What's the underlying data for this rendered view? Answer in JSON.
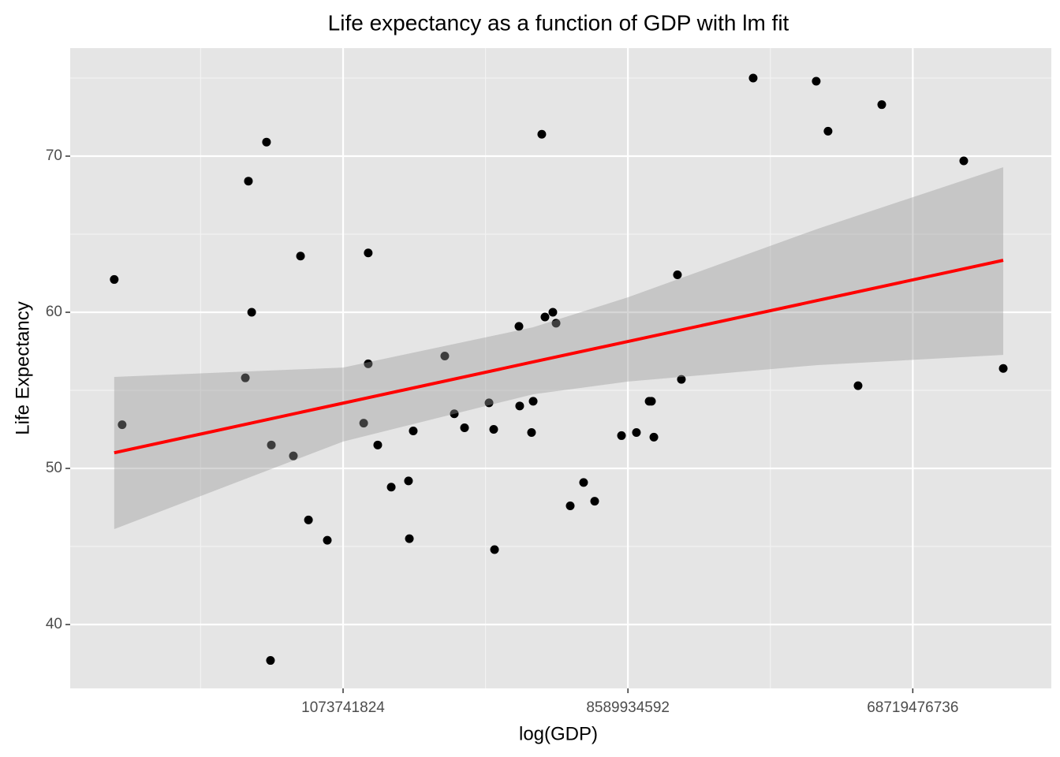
{
  "chart_data": {
    "type": "scatter",
    "title": "Life expectancy as a function of GDP with lm fit",
    "x_label": "log(GDP)",
    "y_label": "Life Expectancy",
    "x_scale": "log",
    "grid": true,
    "color": "#000000",
    "xlim": [
      146470000,
      188930000000
    ],
    "ylim": [
      35.91,
      76.92
    ],
    "xticks": [
      1073741824,
      8589934592,
      68719476736
    ],
    "yticks": [
      40,
      50,
      60,
      70
    ],
    "x": [
      202000000,
      214000000,
      526000000,
      538000000,
      551000000,
      614000000,
      636000000,
      632000000,
      747000000,
      787000000,
      834000000,
      957000000,
      1248000000,
      1290000000,
      1290000000,
      1383000000,
      1526000000,
      1731000000,
      1742000000,
      1792000000,
      2256000000,
      2418000000,
      2606000000,
      3116000000,
      3224000000,
      3244000000,
      3877000000,
      3898000000,
      4250000000,
      4301000000,
      4580000000,
      4688000000,
      4965000000,
      5083000000,
      5637000000,
      6215000000,
      6738000000,
      8196000000,
      9140000000,
      10030000000,
      10200000000,
      10380000000,
      12330000000,
      12690000000,
      21430000000,
      33960000000,
      37020000000,
      46090000000,
      54790000000,
      99700000000,
      133000000000
    ],
    "values": [
      62.1,
      52.8,
      55.8,
      68.4,
      60.0,
      70.9,
      51.5,
      37.7,
      50.8,
      63.6,
      46.7,
      45.4,
      52.9,
      63.8,
      56.7,
      51.5,
      48.8,
      49.2,
      45.5,
      52.4,
      57.2,
      53.5,
      52.6,
      54.2,
      52.5,
      44.8,
      59.1,
      54.0,
      52.3,
      54.3,
      71.4,
      59.7,
      60.0,
      59.3,
      47.6,
      49.1,
      47.9,
      52.1,
      52.3,
      54.3,
      54.3,
      52.0,
      62.4,
      55.7,
      75.0,
      74.8,
      71.6,
      55.3,
      73.3,
      69.7,
      56.4
    ],
    "fit": {
      "color": "#ff0000",
      "band_color": "#999999",
      "x": [
        202000000,
        1073741824,
        4301000000,
        8589934592,
        34359738368,
        133000000000
      ],
      "values": [
        51.0,
        54.18,
        56.82,
        58.13,
        60.76,
        63.33
      ],
      "lower": [
        46.11,
        51.72,
        54.75,
        55.56,
        56.62,
        57.27
      ],
      "upper": [
        55.86,
        56.46,
        59.04,
        60.96,
        65.35,
        69.29
      ]
    }
  }
}
